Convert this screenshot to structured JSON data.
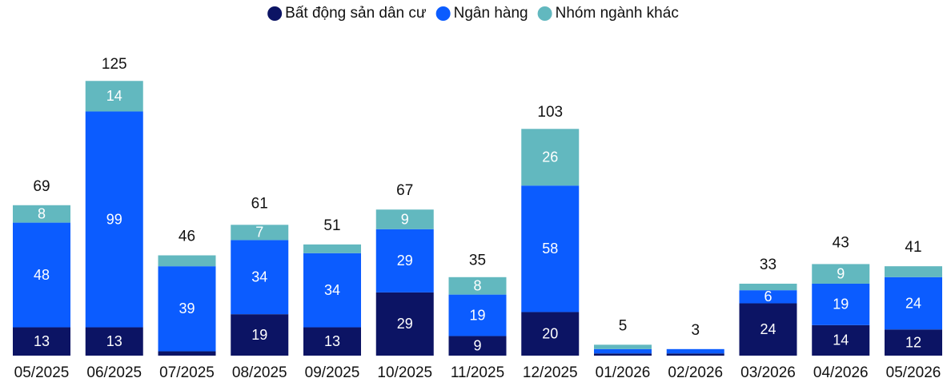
{
  "chart_data": {
    "type": "stacked_bar",
    "categories": [
      "05/2025",
      "06/2025",
      "07/2025",
      "08/2025",
      "09/2025",
      "10/2025",
      "11/2025",
      "12/2025",
      "01/2026",
      "02/2026",
      "03/2026",
      "04/2026",
      "05/2026"
    ],
    "series": [
      {
        "name": "Bất động sản dân cư",
        "color": "#0c1464",
        "values": [
          13,
          13,
          2,
          19,
          13,
          29,
          9,
          20,
          1,
          1,
          24,
          14,
          12
        ],
        "value_labels": [
          "13",
          "13",
          null,
          "19",
          "13",
          "29",
          "9",
          "20",
          null,
          null,
          "24",
          "14",
          "12"
        ]
      },
      {
        "name": "Ngân hàng",
        "color": "#0b5cff",
        "values": [
          48,
          99,
          39,
          34,
          34,
          29,
          19,
          58,
          2,
          2,
          6,
          19,
          24
        ],
        "value_labels": [
          "48",
          "99",
          "39",
          "34",
          "34",
          "29",
          "19",
          "58",
          null,
          null,
          "6",
          "19",
          "24"
        ]
      },
      {
        "name": "Nhóm ngành khác",
        "color": "#62b8bf",
        "values": [
          8,
          14,
          5,
          7,
          4,
          9,
          8,
          26,
          2,
          0,
          3,
          9,
          5
        ],
        "value_labels": [
          "8",
          "14",
          null,
          "7",
          null,
          "9",
          "8",
          "26",
          null,
          null,
          null,
          "9",
          null
        ]
      }
    ],
    "totals": [
      69,
      125,
      46,
      61,
      51,
      67,
      35,
      103,
      5,
      3,
      33,
      43,
      41
    ],
    "legend": "top"
  }
}
